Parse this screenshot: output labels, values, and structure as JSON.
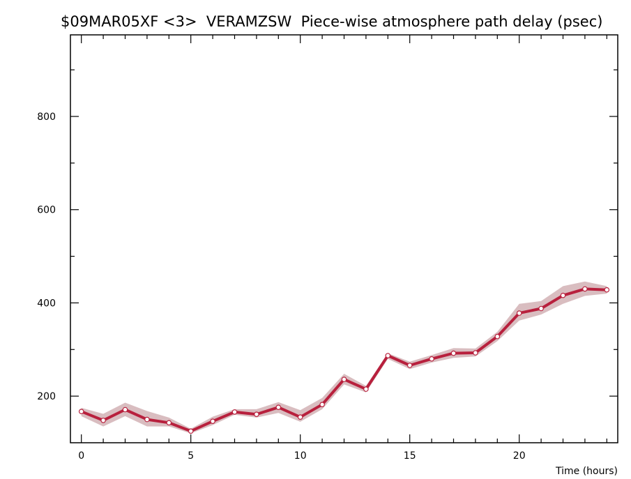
{
  "chart_data": {
    "type": "line",
    "title": "$09MAR05XF <3>  VERAMZSW  Piece-wise atmosphere path delay (psec)",
    "xlabel": "Time (hours)",
    "ylabel": "",
    "xlim": [
      -0.5,
      24.5
    ],
    "ylim": [
      100,
      975
    ],
    "x_ticks": [
      0,
      5,
      10,
      15,
      20
    ],
    "y_ticks": [
      200,
      400,
      600,
      800
    ],
    "grid": false,
    "series": [
      {
        "values": [
          {
            "x": 0,
            "y": 167,
            "lo": 157,
            "hi": 175
          },
          {
            "x": 1,
            "y": 148,
            "lo": 135,
            "hi": 162
          },
          {
            "x": 2,
            "y": 171,
            "lo": 157,
            "hi": 186
          },
          {
            "x": 3,
            "y": 150,
            "lo": 135,
            "hi": 168
          },
          {
            "x": 4,
            "y": 143,
            "lo": 135,
            "hi": 154
          },
          {
            "x": 5,
            "y": 125,
            "lo": 120,
            "hi": 130
          },
          {
            "x": 6,
            "y": 146,
            "lo": 138,
            "hi": 156
          },
          {
            "x": 7,
            "y": 166,
            "lo": 160,
            "hi": 172
          },
          {
            "x": 8,
            "y": 161,
            "lo": 154,
            "hi": 172
          },
          {
            "x": 9,
            "y": 176,
            "lo": 164,
            "hi": 187
          },
          {
            "x": 10,
            "y": 155,
            "lo": 145,
            "hi": 170
          },
          {
            "x": 11,
            "y": 182,
            "lo": 172,
            "hi": 196
          },
          {
            "x": 12,
            "y": 236,
            "lo": 225,
            "hi": 248
          },
          {
            "x": 13,
            "y": 215,
            "lo": 208,
            "hi": 222
          },
          {
            "x": 14,
            "y": 287,
            "lo": 280,
            "hi": 292
          },
          {
            "x": 15,
            "y": 266,
            "lo": 258,
            "hi": 274
          },
          {
            "x": 16,
            "y": 280,
            "lo": 272,
            "hi": 288
          },
          {
            "x": 17,
            "y": 292,
            "lo": 282,
            "hi": 303
          },
          {
            "x": 18,
            "y": 293,
            "lo": 285,
            "hi": 302
          },
          {
            "x": 19,
            "y": 328,
            "lo": 318,
            "hi": 338
          },
          {
            "x": 20,
            "y": 378,
            "lo": 362,
            "hi": 398
          },
          {
            "x": 21,
            "y": 388,
            "lo": 375,
            "hi": 404
          },
          {
            "x": 22,
            "y": 416,
            "lo": 398,
            "hi": 436
          },
          {
            "x": 23,
            "y": 430,
            "lo": 415,
            "hi": 446
          },
          {
            "x": 24,
            "y": 428,
            "lo": 420,
            "hi": 436
          }
        ]
      }
    ],
    "colors": {
      "line": "#b8203d",
      "band": "#d9bdc0",
      "marker_fill": "#ffffff",
      "marker_stroke": "#b8203d",
      "axis": "#000000"
    }
  }
}
